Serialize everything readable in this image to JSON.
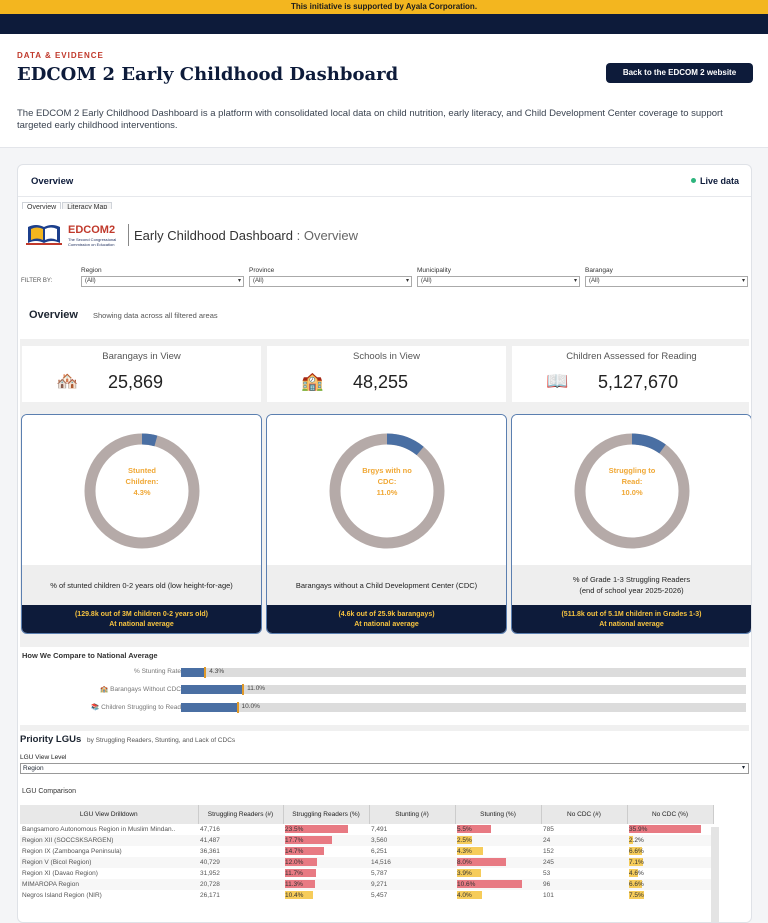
{
  "banner": "This initiative is supported by Ayala Corporation.",
  "header": {
    "kicker": "DATA & EVIDENCE",
    "title": "EDCOM 2 Early Childhood Dashboard",
    "back_button": "Back to the EDCOM 2 website",
    "description": "The EDCOM 2 Early Childhood Dashboard is a platform with consolidated local data on child nutrition, early literacy, and Child Development Center coverage to support targeted early childhood interventions."
  },
  "card": {
    "title": "Overview",
    "live": "Live data",
    "tabs": [
      "Overview",
      "Literacy Map"
    ]
  },
  "logo": {
    "name": "EDCOM2",
    "sub": "The Second Congressional Commission on Education"
  },
  "dashboard": {
    "title_main": "Early Childhood Dashboard",
    "title_sep": " : ",
    "title_section": "Overview"
  },
  "filters": {
    "label": "FILTER BY:",
    "items": [
      {
        "label": "Region",
        "value": "(All)"
      },
      {
        "label": "Province",
        "value": "(All)"
      },
      {
        "label": "Municipality",
        "value": "(All)"
      },
      {
        "label": "Barangay",
        "value": "(All)"
      }
    ]
  },
  "overview": {
    "title": "Overview",
    "subtitle": "Showing data across all filtered areas"
  },
  "kpis": [
    {
      "label": "Barangays in View",
      "value": "25,869",
      "icon": "🏘️"
    },
    {
      "label": "Schools in View",
      "value": "48,255",
      "icon": "🏫"
    },
    {
      "label": "Children Assessed for Reading",
      "value": "5,127,670",
      "icon": "📖"
    }
  ],
  "donuts": [
    {
      "center": [
        "Stunted",
        "Children:",
        "4.3%"
      ],
      "pct": 4.3,
      "caption": "% of stunted children 0-2 years old (low height-for-age)",
      "caption2": "",
      "foot1": "(129.8k out of 3M children 0-2 years old)",
      "foot2": "At national average"
    },
    {
      "center": [
        "Brgys with no",
        "CDC:",
        "11.0%"
      ],
      "pct": 11.0,
      "caption": "Barangays without a Child Development Center (CDC)",
      "caption2": "",
      "foot1": "(4.6k out of 25.9k barangays)",
      "foot2": "At national average"
    },
    {
      "center": [
        "Struggling to",
        "Read:",
        "10.0%"
      ],
      "pct": 10.0,
      "caption": "% of Grade 1-3 Struggling Readers",
      "caption2": "(end of school year 2025-2026)",
      "foot1": "(511.8k out of 5.1M children in Grades 1-3)",
      "foot2": "At national average"
    }
  ],
  "colors": {
    "ring": "#b5aaa8",
    "accent": "#4a6fa3",
    "navy": "#0d1b3a",
    "gold": "#f6c340"
  },
  "compare": {
    "title": "How We Compare to National Average",
    "rows": [
      {
        "label": "% Stunting Rate",
        "value": 4.3,
        "text": "4.3%"
      },
      {
        "label": "🏫 Barangays Without CDC",
        "value": 11.0,
        "text": "11.0%"
      },
      {
        "label": "📚 Children Struggling to Read",
        "value": 10.0,
        "text": "10.0%"
      }
    ]
  },
  "priority": {
    "title": "Priority LGUs",
    "subtitle": "by Struggling Readers, Stunting, and Lack of CDCs",
    "level_label": "LGU View Level",
    "level_value": "Region",
    "comparison_label": "LGU Comparison"
  },
  "table": {
    "headers": [
      "LGU View Drilldown",
      "Struggling Readers (#)",
      "Struggling Readers (%)",
      "Stunting (#)",
      "Stunting (%)",
      "No CDC (#)",
      "No CDC (%)"
    ],
    "rows": [
      {
        "name": "Bangsamoro Autonomous Region in Muslim Mindan..",
        "sr_n": "47,716",
        "sr_p": 23.5,
        "sr_t": "23.5%",
        "st_n": "7,491",
        "st_p": 5.5,
        "st_t": "5.5%",
        "nc_n": "785",
        "nc_p": 35.9,
        "nc_t": "35.9%"
      },
      {
        "name": "Region XII (SOCCSKSARGEN)",
        "sr_n": "41,487",
        "sr_p": 17.7,
        "sr_t": "17.7%",
        "st_n": "3,560",
        "st_p": 2.5,
        "st_t": "2.5%",
        "nc_n": "24",
        "nc_p": 2.2,
        "nc_t": "2.2%"
      },
      {
        "name": "Region IX (Zamboanga Peninsula)",
        "sr_n": "36,361",
        "sr_p": 14.7,
        "sr_t": "14.7%",
        "st_n": "6,251",
        "st_p": 4.3,
        "st_t": "4.3%",
        "nc_n": "152",
        "nc_p": 6.6,
        "nc_t": "6.6%"
      },
      {
        "name": "Region V (Bicol Region)",
        "sr_n": "40,729",
        "sr_p": 12.0,
        "sr_t": "12.0%",
        "st_n": "14,516",
        "st_p": 8.0,
        "st_t": "8.0%",
        "nc_n": "245",
        "nc_p": 7.1,
        "nc_t": "7.1%"
      },
      {
        "name": "Region XI (Davao Region)",
        "sr_n": "31,952",
        "sr_p": 11.7,
        "sr_t": "11.7%",
        "st_n": "5,787",
        "st_p": 3.9,
        "st_t": "3.9%",
        "nc_n": "53",
        "nc_p": 4.6,
        "nc_t": "4.6%"
      },
      {
        "name": "MIMAROPA Region",
        "sr_n": "20,728",
        "sr_p": 11.3,
        "sr_t": "11.3%",
        "st_n": "9,271",
        "st_p": 10.6,
        "st_t": "10.6%",
        "nc_n": "96",
        "nc_p": 6.6,
        "nc_t": "6.6%"
      },
      {
        "name": "Negros Island Region (NIR)",
        "sr_n": "26,171",
        "sr_p": 10.4,
        "sr_t": "10.4%",
        "st_n": "5,457",
        "st_p": 4.0,
        "st_t": "4.0%",
        "nc_n": "101",
        "nc_p": 7.5,
        "nc_t": "7.5%"
      }
    ]
  }
}
